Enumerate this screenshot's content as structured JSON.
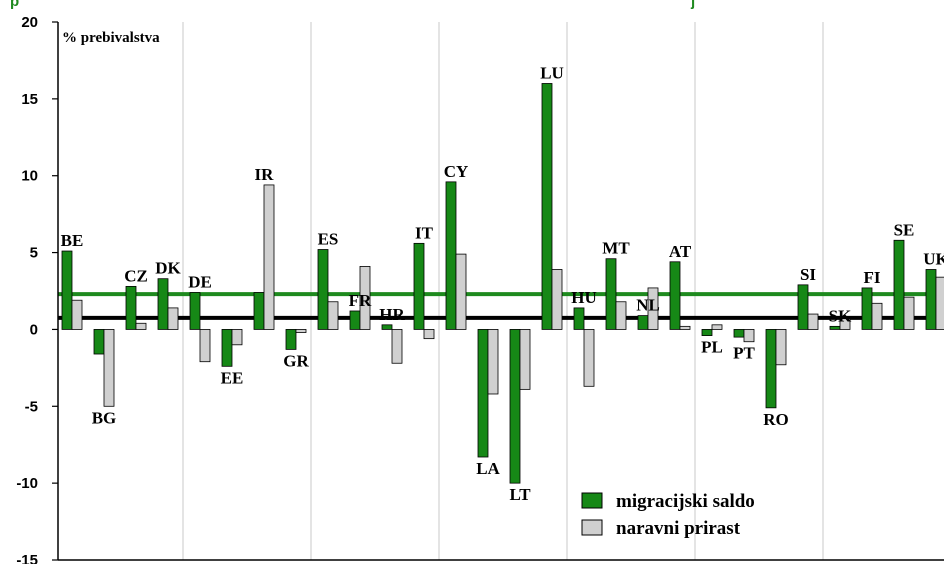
{
  "title_fragments": [
    "p",
    "j"
  ],
  "chart_data": {
    "type": "bar",
    "ylabel": "% prebivalstva",
    "ylim": [
      -15,
      20
    ],
    "yticks": [
      20,
      15,
      10,
      5,
      0,
      -5,
      -10,
      -15
    ],
    "categories": [
      "BE",
      "BG",
      "CZ",
      "DK",
      "DE",
      "EE",
      "IR",
      "GR",
      "ES",
      "FR",
      "HR",
      "IT",
      "CY",
      "LA",
      "LT",
      "LU",
      "HU",
      "MT",
      "NL",
      "AT",
      "PL",
      "PT",
      "RO",
      "SI",
      "SK",
      "FI",
      "SE",
      "UK"
    ],
    "series": [
      {
        "name": "migracijski saldo",
        "color": "#168816",
        "values": [
          5.1,
          -1.6,
          2.8,
          3.3,
          2.4,
          -2.4,
          2.4,
          -1.3,
          5.2,
          1.2,
          0.3,
          5.6,
          9.6,
          -8.3,
          -10.0,
          16.0,
          1.4,
          4.6,
          0.9,
          4.4,
          -0.4,
          -0.5,
          -5.1,
          2.9,
          0.2,
          2.7,
          5.8,
          3.9
        ]
      },
      {
        "name": "naravni prirast",
        "color": "#d0d0d0",
        "values": [
          1.9,
          -5.0,
          0.4,
          1.4,
          -2.1,
          -1.0,
          9.4,
          -0.2,
          1.8,
          4.1,
          -2.2,
          -0.6,
          4.9,
          -4.2,
          -3.9,
          3.9,
          -3.7,
          1.8,
          2.7,
          0.2,
          0.3,
          -0.8,
          -2.3,
          1.0,
          0.7,
          1.7,
          2.1,
          3.4
        ]
      }
    ],
    "reference_lines": [
      {
        "value": 2.3,
        "color": "#1e8a1e"
      },
      {
        "value": 0.75,
        "color": "#000000"
      }
    ],
    "grid": true,
    "legend_position": "bottom-right"
  },
  "legend": {
    "item1": "migracijski saldo",
    "item2": "naravni prirast"
  }
}
